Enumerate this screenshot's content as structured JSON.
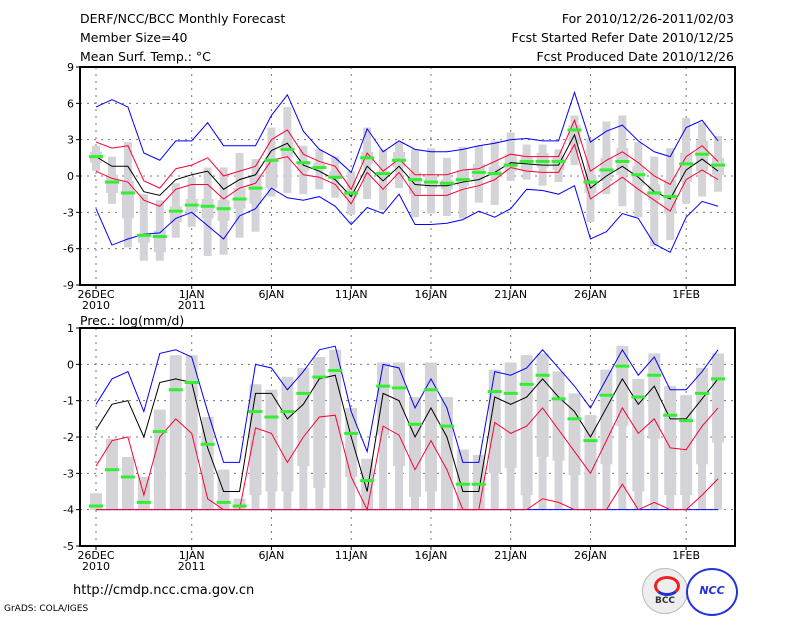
{
  "header": {
    "title": "DERF/NCC/BCC Monthly Forecast",
    "member_size": "Member Size=40",
    "variable": "Mean Surf. Temp.: °C",
    "period": "For 2010/12/26-2011/02/03",
    "start_date": "Fcst Started Refer Date 2010/12/25",
    "produced_date": "Fcst Produced Date 2010/12/26"
  },
  "footer": {
    "url": "http://cmdp.ncc.cma.gov.cn",
    "credit": "GrADS: COLA/IGES",
    "logo_bcc": "BCC",
    "logo_ncc": "NCC"
  },
  "colors": {
    "ensemble_range": "#0000ff",
    "spread": "#ff0033",
    "mean": "#000000",
    "observed": "#33ee33",
    "box": "#d4d4d8"
  },
  "chart_data": [
    {
      "type": "line",
      "title": "Mean Surf. Temp.: °C",
      "ylim": [
        -9,
        9
      ],
      "yticks": [
        -9,
        -6,
        -3,
        0,
        3,
        6,
        9
      ],
      "xtick_days": [
        0,
        6,
        11,
        16,
        21,
        26,
        31,
        37
      ],
      "xtick_labels": [
        "26DEC",
        "1JAN",
        "6JAN",
        "11JAN",
        "16JAN",
        "21JAN",
        "26JAN",
        "1FEB"
      ],
      "xtick_sublabels": [
        "2010",
        "2011",
        "",
        "",
        "",
        "",
        "",
        ""
      ],
      "grid": true,
      "series": [
        {
          "name": "max",
          "color": "#0000ff",
          "values": [
            5.7,
            6.3,
            5.7,
            1.9,
            1.3,
            2.9,
            2.9,
            4.4,
            2.5,
            2.5,
            2.5,
            5.0,
            6.7,
            3.7,
            2.2,
            1.5,
            0.3,
            3.9,
            2.0,
            2.9,
            2.2,
            2.0,
            2.0,
            2.2,
            2.5,
            2.7,
            3.0,
            3.1,
            2.9,
            2.9,
            6.9,
            2.8,
            3.7,
            4.2,
            2.9,
            2.0,
            1.6,
            4.0,
            4.6,
            2.9
          ]
        },
        {
          "name": "min",
          "color": "#0000ff",
          "values": [
            -2.7,
            -5.7,
            -5.2,
            -4.8,
            -4.7,
            -3.5,
            -3.0,
            -4.1,
            -5.2,
            -3.3,
            -2.7,
            -1.0,
            -1.8,
            -2.0,
            -1.7,
            -2.5,
            -4.0,
            -2.6,
            -3.1,
            -1.5,
            -4.0,
            -4.0,
            -3.9,
            -3.6,
            -2.9,
            -3.4,
            -2.7,
            -1.1,
            -1.2,
            -1.5,
            -0.8,
            -5.2,
            -4.6,
            -3.1,
            -3.5,
            -5.6,
            -6.3,
            -3.4,
            -2.1,
            -2.5
          ]
        },
        {
          "name": "mean+sd",
          "color": "#ff0033",
          "values": [
            2.8,
            2.3,
            2.5,
            -0.4,
            -1.0,
            0.6,
            0.9,
            1.5,
            0.0,
            0.4,
            0.8,
            3.0,
            3.8,
            1.8,
            1.2,
            0.8,
            -1.1,
            1.9,
            0.4,
            1.4,
            0.1,
            0.1,
            0.1,
            0.5,
            0.6,
            1.2,
            1.8,
            1.6,
            1.6,
            1.6,
            4.6,
            0.4,
            1.3,
            2.0,
            1.1,
            0.0,
            -0.7,
            1.6,
            2.5,
            1.2
          ]
        },
        {
          "name": "mean-sd",
          "color": "#ff0033",
          "values": [
            0.4,
            -0.2,
            -0.5,
            -2.0,
            -2.5,
            -1.1,
            -0.7,
            -0.7,
            -1.9,
            -1.0,
            -0.6,
            1.3,
            1.6,
            0.1,
            -0.1,
            -0.7,
            -2.3,
            0.3,
            -1.1,
            0.3,
            -1.6,
            -1.6,
            -1.6,
            -1.1,
            -0.8,
            -0.3,
            0.7,
            0.4,
            0.3,
            0.3,
            2.6,
            -1.9,
            -1.0,
            -0.1,
            -1.1,
            -2.0,
            -2.9,
            -0.3,
            0.5,
            -0.3
          ]
        },
        {
          "name": "mean",
          "color": "#000000",
          "values": [
            1.6,
            0.8,
            0.8,
            -1.3,
            -1.6,
            -0.3,
            0.1,
            0.4,
            -1.1,
            -0.3,
            0.1,
            2.1,
            2.7,
            0.9,
            0.4,
            -0.3,
            -1.7,
            0.8,
            -0.4,
            0.8,
            -0.7,
            -0.8,
            -0.8,
            -0.5,
            -0.3,
            0.3,
            1.1,
            1.0,
            0.9,
            0.9,
            3.4,
            -1.0,
            0.0,
            0.8,
            -0.1,
            -1.3,
            -1.9,
            0.5,
            1.4,
            0.4
          ]
        }
      ],
      "markers": {
        "name": "median",
        "color": "#33ee33",
        "values": [
          1.6,
          -0.5,
          -1.4,
          -4.9,
          -5.0,
          -2.9,
          -2.4,
          -2.5,
          -2.7,
          -1.9,
          -1.0,
          1.3,
          2.2,
          1.1,
          0.7,
          -0.1,
          -1.4,
          1.5,
          0.2,
          1.3,
          -0.3,
          -0.5,
          -0.6,
          -0.3,
          0.3,
          0.2,
          0.9,
          1.2,
          1.2,
          1.2,
          3.8,
          -0.5,
          0.5,
          1.2,
          0.1,
          -1.4,
          -1.7,
          1.0,
          1.8,
          0.9
        ]
      },
      "boxes": [
        [
          0.4,
          1.1,
          2.0,
          2.5
        ],
        [
          -2.3,
          -1.4,
          0.1,
          1.6
        ],
        [
          -5.9,
          -3.5,
          -0.4,
          2.8
        ],
        [
          -7.0,
          -5.5,
          -4.8,
          -1.5
        ],
        [
          -7.0,
          -6.3,
          -4.5,
          -2.0
        ],
        [
          -5.1,
          -3.8,
          -2.5,
          -0.6
        ],
        [
          -4.2,
          -3.0,
          -1.9,
          -0.1
        ],
        [
          -6.6,
          -3.5,
          -1.9,
          0.7
        ],
        [
          -6.5,
          -3.7,
          -2.0,
          0.7
        ],
        [
          -5.1,
          -2.7,
          -1.0,
          1.9
        ],
        [
          -4.6,
          -2.3,
          0.1,
          1.4
        ],
        [
          -1.7,
          -1.0,
          1.3,
          4.0
        ],
        [
          -1.4,
          1.6,
          2.9,
          5.7
        ],
        [
          -1.5,
          0.4,
          1.2,
          2.5
        ],
        [
          -1.1,
          0.6,
          1.1,
          2.2
        ],
        [
          -1.8,
          0.0,
          0.4,
          1.6
        ],
        [
          -3.2,
          -1.8,
          -1.2,
          0.4
        ],
        [
          -1.9,
          1.0,
          2.0,
          4.0
        ],
        [
          -2.8,
          -0.1,
          0.4,
          2.2
        ],
        [
          -1.0,
          0.7,
          2.0,
          2.8
        ],
        [
          -3.4,
          -1.5,
          0.3,
          2.2
        ],
        [
          -3.1,
          -1.0,
          0.0,
          2.3
        ],
        [
          -3.3,
          -1.1,
          -0.3,
          1.5
        ],
        [
          -3.5,
          -0.8,
          0.5,
          2.4
        ],
        [
          -2.2,
          -0.3,
          1.0,
          2.5
        ],
        [
          -2.4,
          0.0,
          0.8,
          2.9
        ],
        [
          -0.4,
          0.4,
          1.8,
          3.6
        ],
        [
          -0.3,
          0.4,
          1.6,
          2.6
        ],
        [
          -0.8,
          0.7,
          1.9,
          2.6
        ],
        [
          -0.5,
          0.5,
          1.6,
          2.2
        ],
        [
          0.9,
          2.6,
          4.2,
          5.0
        ],
        [
          -3.8,
          -1.4,
          0.1,
          3.1
        ],
        [
          -1.5,
          -0.4,
          1.5,
          4.5
        ],
        [
          -2.5,
          0.1,
          2.3,
          5.0
        ],
        [
          -3.4,
          -0.8,
          0.8,
          2.8
        ],
        [
          -5.8,
          -2.0,
          -0.7,
          1.6
        ],
        [
          -5.3,
          -3.1,
          -0.3,
          2.3
        ],
        [
          -2.3,
          -0.5,
          1.9,
          4.8
        ],
        [
          -1.7,
          0.4,
          2.9,
          4.4
        ],
        [
          -1.3,
          0.1,
          1.5,
          3.3
        ]
      ]
    },
    {
      "type": "line",
      "title": "Prec.: log(mm/d)",
      "ylim": [
        -5,
        1
      ],
      "yticks": [
        -5,
        -4,
        -3,
        -2,
        -1,
        0,
        1
      ],
      "xtick_days": [
        0,
        6,
        11,
        16,
        21,
        26,
        31,
        37
      ],
      "xtick_labels": [
        "26DEC",
        "1JAN",
        "6JAN",
        "11JAN",
        "16JAN",
        "21JAN",
        "26JAN",
        "1FEB"
      ],
      "xtick_sublabels": [
        "2010",
        "2011",
        "",
        "",
        "",
        "",
        "",
        ""
      ],
      "grid": true,
      "series": [
        {
          "name": "max",
          "color": "#0000ff",
          "values": [
            -1.1,
            -0.4,
            -0.2,
            -1.3,
            0.3,
            0.4,
            0.2,
            -1.3,
            -2.7,
            -2.7,
            0.0,
            -0.1,
            -0.7,
            -0.2,
            0.4,
            0.5,
            -1.3,
            -2.4,
            0.0,
            -0.1,
            -1.2,
            -0.4,
            -1.2,
            -2.7,
            -2.7,
            -0.2,
            -0.3,
            -0.1,
            0.4,
            -0.1,
            -0.6,
            -1.2,
            -0.4,
            0.4,
            -0.3,
            0.2,
            -0.7,
            -0.7,
            -0.2,
            0.4
          ]
        },
        {
          "name": "min",
          "color": "#0000ff",
          "values": [
            -4,
            -4,
            -4,
            -4,
            -4,
            -4,
            -4,
            -4,
            -4,
            -4,
            -4,
            -4,
            -4,
            -4,
            -4,
            -4,
            -4,
            -4,
            -4,
            -4,
            -4,
            -4,
            -4,
            -4,
            -4,
            -4,
            -4,
            -4,
            -4,
            -4,
            -4,
            -4,
            -4,
            -4,
            -4,
            -4,
            -4,
            -4,
            -4,
            -4
          ]
        },
        {
          "name": "mean+sd",
          "color": "#ff0033",
          "values": [
            -2.8,
            -2.1,
            -2.0,
            -3.6,
            -2.0,
            -1.5,
            -1.9,
            -3.7,
            -4.0,
            -4.0,
            -1.75,
            -1.9,
            -2.7,
            -2.0,
            -1.45,
            -1.4,
            -3.1,
            -4.0,
            -1.7,
            -1.95,
            -2.9,
            -2.1,
            -2.9,
            -4.0,
            -4.0,
            -1.6,
            -1.9,
            -1.7,
            -1.2,
            -1.8,
            -2.4,
            -3.0,
            -2.1,
            -1.2,
            -1.9,
            -1.5,
            -2.3,
            -2.35,
            -1.7,
            -1.2
          ]
        },
        {
          "name": "mean-sd",
          "color": "#ff0033",
          "values": [
            -4,
            -4,
            -4,
            -4,
            -4,
            -4,
            -4,
            -4,
            -4,
            -4,
            -4,
            -4,
            -4,
            -4,
            -4,
            -4,
            -4,
            -4,
            -4,
            -4,
            -4,
            -4,
            -4,
            -4,
            -4,
            -4,
            -4,
            -4,
            -3.7,
            -3.8,
            -4,
            -4,
            -4,
            -3.3,
            -4,
            -3.8,
            -4,
            -4,
            -3.6,
            -3.15
          ]
        },
        {
          "name": "mean",
          "color": "#000000",
          "values": [
            -1.8,
            -1.1,
            -1.0,
            -2.0,
            -0.5,
            -0.4,
            -0.5,
            -2.3,
            -3.5,
            -3.5,
            -0.8,
            -0.8,
            -1.5,
            -1.1,
            -0.4,
            -0.3,
            -2.0,
            -3.5,
            -0.8,
            -1.0,
            -2.0,
            -1.2,
            -2.0,
            -3.5,
            -3.5,
            -0.9,
            -1.1,
            -0.9,
            -0.4,
            -0.9,
            -1.3,
            -2.0,
            -1.2,
            -0.4,
            -1.1,
            -0.6,
            -1.5,
            -1.5,
            -0.95,
            -0.4
          ]
        }
      ],
      "markers": {
        "name": "median",
        "color": "#33ee33",
        "values": [
          -3.9,
          -2.9,
          -3.1,
          -3.8,
          -1.85,
          -0.7,
          -0.5,
          -2.2,
          -3.8,
          -3.9,
          -1.3,
          -1.45,
          -1.3,
          -0.8,
          -0.35,
          -0.17,
          -1.9,
          -3.2,
          -0.6,
          -0.65,
          -1.65,
          -0.7,
          -1.7,
          -3.3,
          -3.3,
          -0.75,
          -0.8,
          -0.55,
          -0.3,
          -0.95,
          -1.5,
          -2.1,
          -0.85,
          -0.05,
          -0.9,
          -0.3,
          -1.4,
          -1.55,
          -0.8,
          -0.4
        ]
      },
      "boxes": [
        [
          -4,
          -4,
          -3.55,
          -3.55
        ],
        [
          -4,
          -4,
          -2.05,
          -2.05
        ],
        [
          -4,
          -4,
          -2.55,
          -2.55
        ],
        [
          -4,
          -4,
          -3.1,
          -3.1
        ],
        [
          -4,
          -4,
          -1.25,
          -1.25
        ],
        [
          -4,
          -4,
          0.25,
          0.25
        ],
        [
          -4,
          -4,
          0.25,
          0.25
        ],
        [
          -4,
          -4,
          -1.45,
          -1.45
        ],
        [
          -4,
          -4,
          -2.9,
          -2.9
        ],
        [
          -4,
          -4,
          -3.7,
          -3.7
        ],
        [
          -4,
          -3.6,
          -0.55,
          -0.55
        ],
        [
          -4,
          -3.5,
          -0.7,
          -0.7
        ],
        [
          -4,
          -3.5,
          -0.35,
          -0.35
        ],
        [
          -4,
          -2.8,
          -0.1,
          -0.1
        ],
        [
          -4,
          -3.4,
          0.2,
          0.2
        ],
        [
          -4,
          -4,
          0.4,
          0.4
        ],
        [
          -4,
          -3.1,
          -1.2,
          -1.2
        ],
        [
          -4,
          -4,
          -2.6,
          -2.6
        ],
        [
          -4,
          -1.95,
          0.05,
          0.05
        ],
        [
          -4,
          -2.8,
          0.05,
          0.05
        ],
        [
          -4,
          -3.65,
          -0.9,
          -0.9
        ],
        [
          -4,
          -3.5,
          0.05,
          0.05
        ],
        [
          -4,
          -4,
          -0.9,
          -0.9
        ],
        [
          -4,
          -4,
          -2.35,
          -2.35
        ],
        [
          -4,
          -4,
          -2.5,
          -2.5
        ],
        [
          -4,
          -3.0,
          -0.15,
          -0.15
        ],
        [
          -4,
          -2.85,
          0.05,
          0.05
        ],
        [
          -4,
          -3.6,
          0.25,
          0.25
        ],
        [
          -4,
          -2.55,
          0.3,
          0.3
        ],
        [
          -4,
          -2.65,
          -0.2,
          -0.2
        ],
        [
          -4,
          -3.05,
          -0.8,
          -0.8
        ],
        [
          -4,
          -4,
          -1.4,
          -1.4
        ],
        [
          -4,
          -2.75,
          -0.15,
          -0.15
        ],
        [
          -4,
          -1.7,
          0.5,
          0.5
        ],
        [
          -4,
          -3.5,
          -0.4,
          -0.4
        ],
        [
          -4,
          -2.05,
          0.3,
          0.3
        ],
        [
          -4,
          -3.6,
          -0.6,
          -0.6
        ],
        [
          -4,
          -3.6,
          -0.85,
          -0.85
        ],
        [
          -4,
          -2.75,
          -0.1,
          -0.1
        ],
        [
          -4,
          -2.15,
          0.3,
          0.3
        ]
      ]
    }
  ]
}
